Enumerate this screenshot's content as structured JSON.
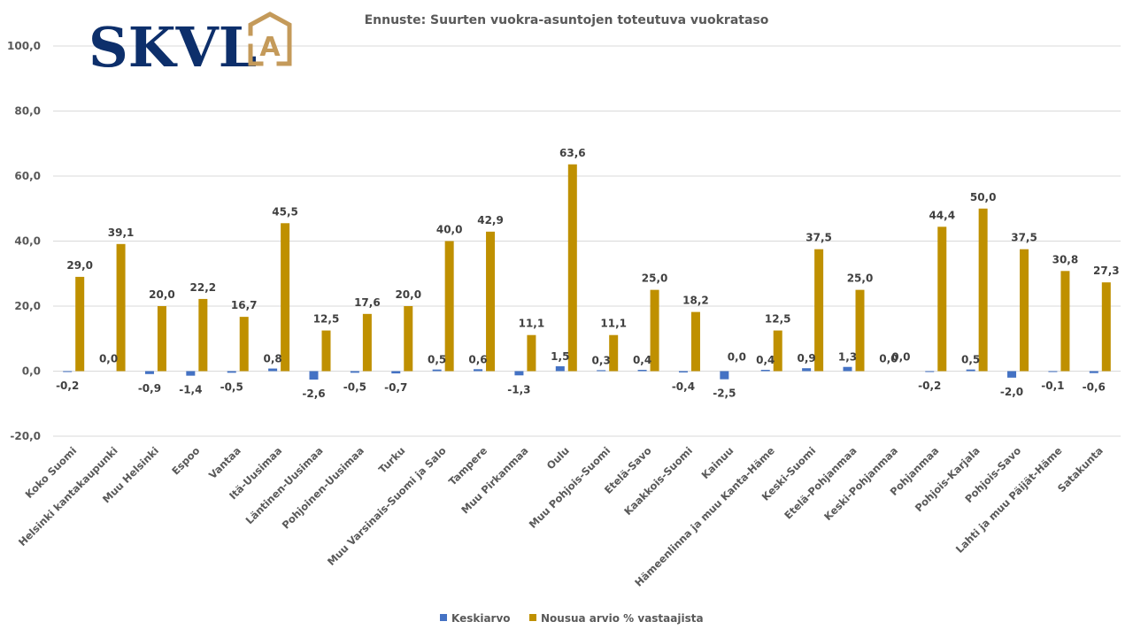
{
  "logo": {
    "text": "SKVL",
    "mark_letter": "A",
    "text_color": "#0d2f6b",
    "mark_color": "#c49a5a"
  },
  "chart_data": {
    "type": "bar",
    "title": "Ennuste: Suurten vuokra-asuntojen toteutuva vuokrataso",
    "xlabel": "",
    "ylabel": "",
    "ylim": [
      -20,
      100
    ],
    "yticks": [
      -20,
      0,
      20,
      40,
      60,
      80,
      100
    ],
    "ytick_labels": [
      "-20,0",
      "0,0",
      "20,0",
      "40,0",
      "60,0",
      "80,0",
      "100,0"
    ],
    "grid": true,
    "legend_position": "bottom",
    "categories": [
      "Koko Suomi",
      "Helsinki kantakaupunki",
      "Muu Helsinki",
      "Espoo",
      "Vantaa",
      "Itä-Uusimaa",
      "Läntinen-Uusimaa",
      "Pohjoinen-Uusimaa",
      "Turku",
      "Muu Varsinais-Suomi ja Salo",
      "Tampere",
      "Muu Pirkanmaa",
      "Oulu",
      "Muu Pohjois-Suomi",
      "Etelä-Savo",
      "Kaakkois-Suomi",
      "Kainuu",
      "Hämeenlinna ja muu Kanta-Häme",
      "Keski-Suomi",
      "Etelä-Pohjanmaa",
      "Keski-Pohjanmaa",
      "Pohjanmaa",
      "Pohjois-Karjala",
      "Pohjois-Savo",
      "Lahti ja muu Päijät-Häme",
      "Satakunta"
    ],
    "series": [
      {
        "name": "Keskiarvo",
        "color": "#4472c4",
        "values": [
          -0.2,
          0.0,
          -0.9,
          -1.4,
          -0.5,
          0.8,
          -2.6,
          -0.5,
          -0.7,
          0.5,
          0.6,
          -1.3,
          1.5,
          0.3,
          0.4,
          -0.4,
          -2.5,
          0.4,
          0.9,
          1.3,
          0.0,
          -0.2,
          0.5,
          -2.0,
          -0.1,
          -0.6
        ],
        "labels": [
          "-0,2",
          "0,0",
          "-0,9",
          "-1,4",
          "-0,5",
          "0,8",
          "-2,6",
          "-0,5",
          "-0,7",
          "0,5",
          "0,6",
          "-1,3",
          "1,5",
          "0,3",
          "0,4",
          "-0,4",
          "-2,5",
          "0,4",
          "0,9",
          "1,3",
          "0,0",
          "-0,2",
          "0,5",
          "-2,0",
          "-0,1",
          "-0,6"
        ]
      },
      {
        "name": "Nousua arvio % vastaajista",
        "color": "#bf9000",
        "values": [
          29.0,
          39.1,
          20.0,
          22.2,
          16.7,
          45.5,
          12.5,
          17.6,
          20.0,
          40.0,
          42.9,
          11.1,
          63.6,
          11.1,
          25.0,
          18.2,
          0.0,
          12.5,
          37.5,
          25.0,
          0.0,
          44.4,
          50.0,
          37.5,
          30.8,
          27.3
        ],
        "labels": [
          "29,0",
          "39,1",
          "20,0",
          "22,2",
          "16,7",
          "45,5",
          "12,5",
          "17,6",
          "20,0",
          "40,0",
          "42,9",
          "11,1",
          "63,6",
          "11,1",
          "25,0",
          "18,2",
          "0,0",
          "12,5",
          "37,5",
          "25,0",
          "0,0",
          "44,4",
          "50,0",
          "37,5",
          "30,8",
          "27,3"
        ]
      }
    ]
  }
}
